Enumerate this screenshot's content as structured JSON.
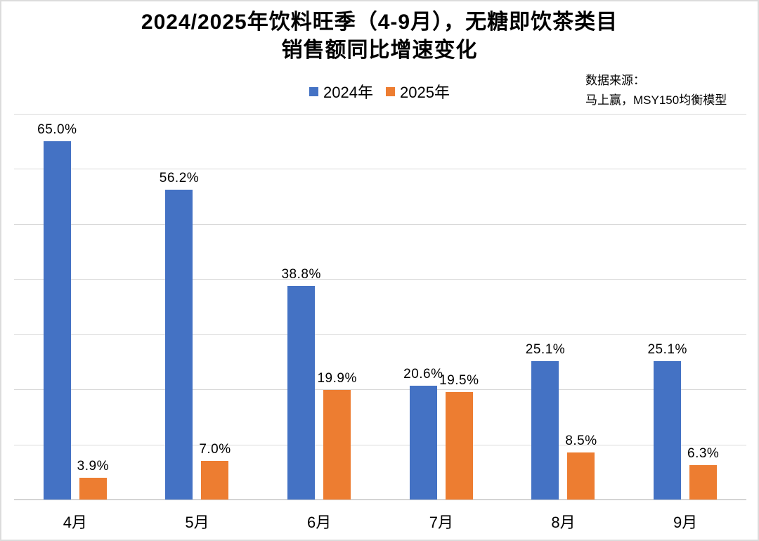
{
  "title": {
    "line1": "2024/2025年饮料旺季（4-9月），无糖即饮茶类目",
    "line2": "销售额同比增速变化"
  },
  "legend": {
    "items": [
      {
        "label": "2024年",
        "color": "#4472C4"
      },
      {
        "label": "2025年",
        "color": "#ED7D31"
      }
    ]
  },
  "source": {
    "line1": "数据来源：",
    "line2": "马上赢，MSY150均衡模型"
  },
  "chart_data": {
    "type": "bar",
    "title": "2024/2025年饮料旺季（4-9月），无糖即饮茶类目销售额同比增速变化",
    "categories": [
      "4月",
      "5月",
      "6月",
      "7月",
      "8月",
      "9月"
    ],
    "series": [
      {
        "name": "2024年",
        "color": "#4472C4",
        "values": [
          65.0,
          56.2,
          38.8,
          20.6,
          25.1,
          25.1
        ],
        "labels": [
          "65.0%",
          "56.2%",
          "38.8%",
          "20.6%",
          "25.1%",
          "25.1%"
        ]
      },
      {
        "name": "2025年",
        "color": "#ED7D31",
        "values": [
          3.9,
          7.0,
          19.9,
          19.5,
          8.5,
          6.3
        ],
        "labels": [
          "3.9%",
          "7.0%",
          "19.9%",
          "19.5%",
          "8.5%",
          "6.3%"
        ]
      }
    ],
    "xlabel": "",
    "ylabel": "",
    "ylim": [
      0,
      70
    ],
    "gridline_step": 10,
    "grid": true,
    "y_tick_labels_visible": false,
    "legend_position": "top",
    "value_labels": true
  }
}
